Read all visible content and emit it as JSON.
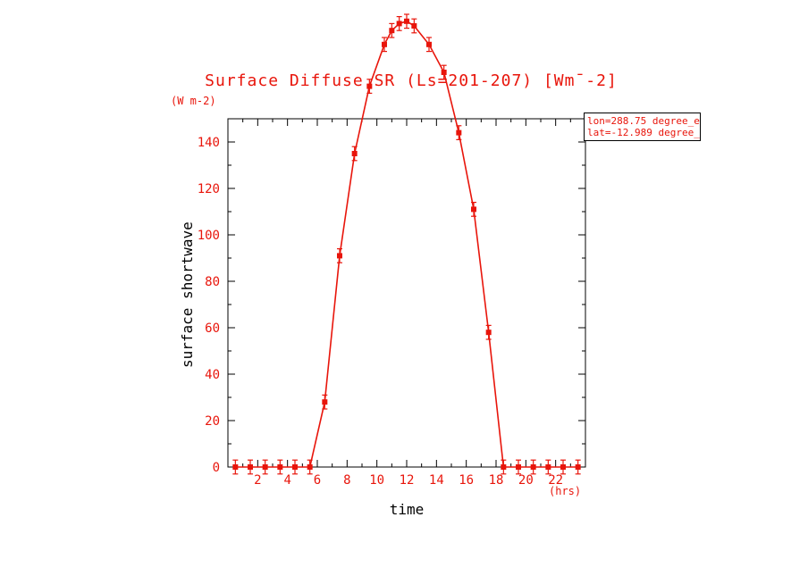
{
  "colors": {
    "series": "#e8150b",
    "axis": "#000000",
    "tick_text": "#e8150b",
    "axis_title_text": "#000000"
  },
  "header": {
    "title": "Surface Diffuse SR (Ls=201-207) [Wm¯-2]"
  },
  "labels": {
    "y_units": "(W m-2)",
    "x_units": "(hrs)"
  },
  "annotation": {
    "line1": "lon=288.75 degree_e",
    "line2": "lat=-12.989 degree_"
  },
  "chart_data": {
    "type": "line",
    "title": "Surface Diffuse SR (Ls=201-207) [Wm¯-2]",
    "xlabel": "time",
    "ylabel": "surface shortwave",
    "x": [
      0.5,
      1.5,
      2.5,
      3.5,
      4.5,
      5.5,
      6.5,
      7.5,
      8.5,
      9.5,
      10.5,
      11,
      11.5,
      12,
      12.5,
      13.5,
      14.5,
      15.5,
      16.5,
      17.5,
      18.5,
      19.5,
      20.5,
      21.5,
      22.5,
      23.5
    ],
    "y": [
      0,
      0,
      0,
      0,
      0,
      0,
      28,
      91,
      135,
      164,
      182,
      188,
      191,
      192,
      190,
      182,
      170,
      144,
      111,
      58,
      0,
      0,
      0,
      0,
      0,
      0
    ],
    "yerr": 3,
    "xlim": [
      0,
      24
    ],
    "ylim": [
      0,
      150
    ],
    "xticks_major": [
      2,
      4,
      6,
      8,
      10,
      12,
      14,
      16,
      18,
      20,
      22
    ],
    "yticks_major": [
      0,
      20,
      40,
      60,
      80,
      100,
      120,
      140
    ],
    "xtick_minor_step": 1,
    "ytick_minor_step": 10,
    "grid": false,
    "legend_position": "top-right",
    "marker": "square",
    "clip": false
  }
}
